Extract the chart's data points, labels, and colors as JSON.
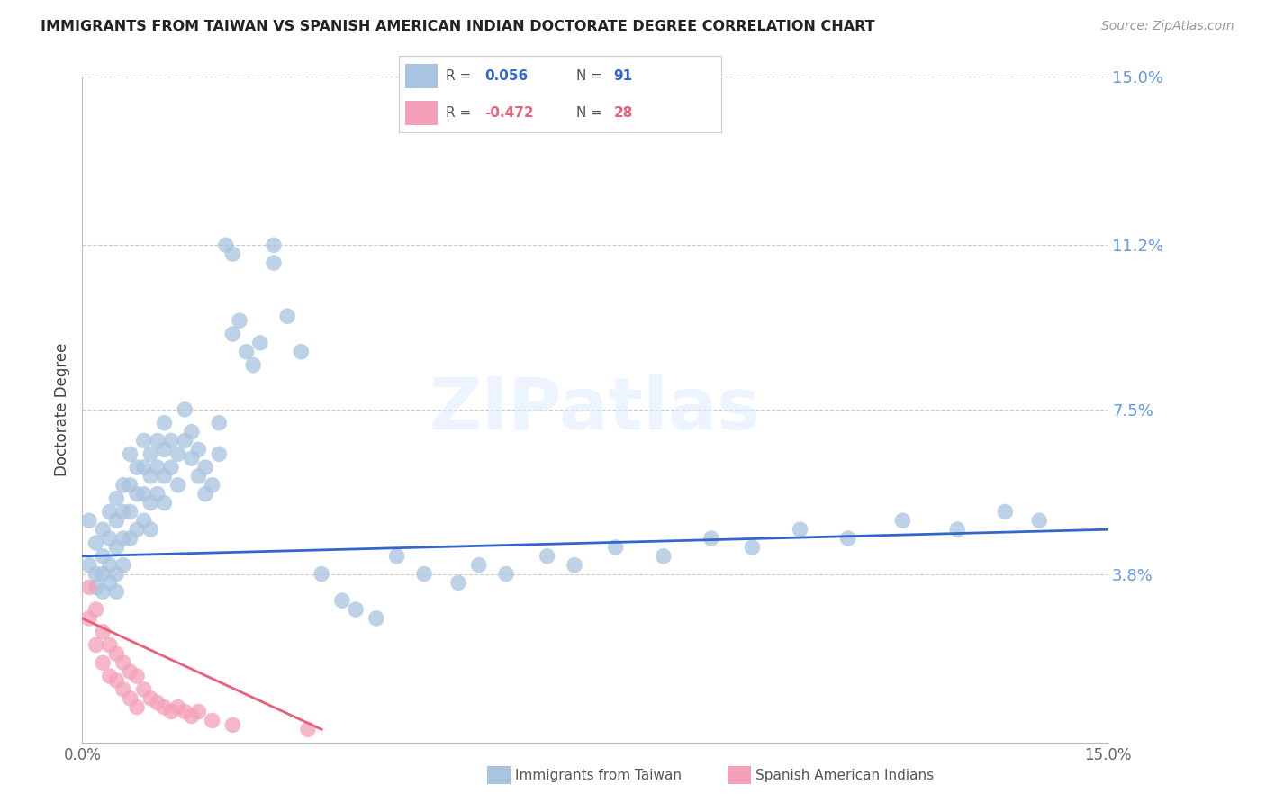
{
  "title": "IMMIGRANTS FROM TAIWAN VS SPANISH AMERICAN INDIAN DOCTORATE DEGREE CORRELATION CHART",
  "source": "Source: ZipAtlas.com",
  "ylabel": "Doctorate Degree",
  "xmin": 0.0,
  "xmax": 0.15,
  "ymin": 0.0,
  "ymax": 0.15,
  "ytick_vals": [
    0.038,
    0.075,
    0.112,
    0.15
  ],
  "ytick_labels": [
    "3.8%",
    "7.5%",
    "11.2%",
    "15.0%"
  ],
  "xtick_vals": [
    0.0,
    0.15
  ],
  "xtick_labels": [
    "0.0%",
    "15.0%"
  ],
  "grid_color": "#cccccc",
  "background_color": "#ffffff",
  "taiwan_color": "#a8c4e0",
  "taiwan_line_color": "#3366cc",
  "spanish_color": "#f4a0b8",
  "spanish_line_color": "#e8607a",
  "taiwan_R": 0.056,
  "taiwan_N": 91,
  "spanish_R": -0.472,
  "spanish_N": 28,
  "legend_label_taiwan": "Immigrants from Taiwan",
  "legend_label_spanish": "Spanish American Indians",
  "taiwan_x": [
    0.001,
    0.001,
    0.002,
    0.002,
    0.002,
    0.003,
    0.003,
    0.003,
    0.003,
    0.004,
    0.004,
    0.004,
    0.004,
    0.005,
    0.005,
    0.005,
    0.005,
    0.005,
    0.006,
    0.006,
    0.006,
    0.006,
    0.007,
    0.007,
    0.007,
    0.007,
    0.008,
    0.008,
    0.008,
    0.009,
    0.009,
    0.009,
    0.009,
    0.01,
    0.01,
    0.01,
    0.01,
    0.011,
    0.011,
    0.011,
    0.012,
    0.012,
    0.012,
    0.012,
    0.013,
    0.013,
    0.014,
    0.014,
    0.015,
    0.015,
    0.016,
    0.016,
    0.017,
    0.017,
    0.018,
    0.018,
    0.019,
    0.02,
    0.02,
    0.021,
    0.022,
    0.022,
    0.023,
    0.024,
    0.025,
    0.026,
    0.028,
    0.028,
    0.03,
    0.032,
    0.035,
    0.038,
    0.04,
    0.043,
    0.046,
    0.05,
    0.055,
    0.058,
    0.062,
    0.068,
    0.072,
    0.078,
    0.085,
    0.092,
    0.098,
    0.105,
    0.112,
    0.12,
    0.128,
    0.135,
    0.14
  ],
  "taiwan_y": [
    0.05,
    0.04,
    0.045,
    0.038,
    0.035,
    0.048,
    0.042,
    0.038,
    0.034,
    0.052,
    0.046,
    0.04,
    0.036,
    0.055,
    0.05,
    0.044,
    0.038,
    0.034,
    0.058,
    0.052,
    0.046,
    0.04,
    0.065,
    0.058,
    0.052,
    0.046,
    0.062,
    0.056,
    0.048,
    0.068,
    0.062,
    0.056,
    0.05,
    0.065,
    0.06,
    0.054,
    0.048,
    0.068,
    0.062,
    0.056,
    0.072,
    0.066,
    0.06,
    0.054,
    0.068,
    0.062,
    0.065,
    0.058,
    0.075,
    0.068,
    0.07,
    0.064,
    0.066,
    0.06,
    0.062,
    0.056,
    0.058,
    0.072,
    0.065,
    0.112,
    0.11,
    0.092,
    0.095,
    0.088,
    0.085,
    0.09,
    0.112,
    0.108,
    0.096,
    0.088,
    0.038,
    0.032,
    0.03,
    0.028,
    0.042,
    0.038,
    0.036,
    0.04,
    0.038,
    0.042,
    0.04,
    0.044,
    0.042,
    0.046,
    0.044,
    0.048,
    0.046,
    0.05,
    0.048,
    0.052,
    0.05
  ],
  "spanish_x": [
    0.001,
    0.001,
    0.002,
    0.002,
    0.003,
    0.003,
    0.004,
    0.004,
    0.005,
    0.005,
    0.006,
    0.006,
    0.007,
    0.007,
    0.008,
    0.008,
    0.009,
    0.01,
    0.011,
    0.012,
    0.013,
    0.014,
    0.015,
    0.016,
    0.017,
    0.019,
    0.022,
    0.033
  ],
  "spanish_y": [
    0.035,
    0.028,
    0.03,
    0.022,
    0.025,
    0.018,
    0.022,
    0.015,
    0.02,
    0.014,
    0.018,
    0.012,
    0.016,
    0.01,
    0.015,
    0.008,
    0.012,
    0.01,
    0.009,
    0.008,
    0.007,
    0.008,
    0.007,
    0.006,
    0.007,
    0.005,
    0.004,
    0.003
  ]
}
